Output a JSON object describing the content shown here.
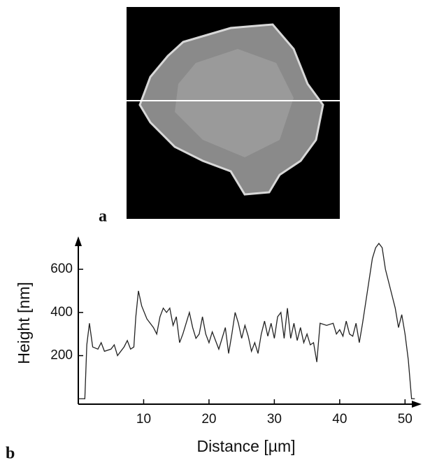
{
  "panel_labels": [
    "a",
    "b"
  ],
  "chart_data": {
    "type": "line",
    "xlabel": "Distance [µm]",
    "ylabel": "Height [nm]",
    "x": [
      0,
      1,
      1.3,
      1.7,
      2.2,
      3,
      3.5,
      4,
      5,
      5.5,
      6,
      7,
      7.5,
      8,
      8.5,
      8.8,
      9.2,
      9.7,
      10.5,
      11.5,
      12,
      12.5,
      13,
      13.5,
      14,
      14.5,
      15,
      15.5,
      16,
      16.5,
      17,
      17.5,
      18,
      18.5,
      19,
      19.5,
      20,
      20.5,
      21,
      21.5,
      22,
      22.5,
      23,
      23.5,
      24,
      24.5,
      25,
      25.5,
      26,
      26.5,
      27,
      27.5,
      28,
      28.5,
      29,
      29.5,
      30,
      30.5,
      31,
      31.5,
      32,
      32.5,
      33,
      33.5,
      34,
      34.5,
      35,
      35.5,
      36,
      36.5,
      37,
      38,
      39,
      39.5,
      40,
      40.5,
      41,
      41.5,
      42,
      42.5,
      43,
      43.5,
      44,
      44.5,
      45,
      45.5,
      46,
      46.5,
      47,
      47.5,
      48,
      48.5,
      49,
      49.5,
      50,
      50.5,
      51,
      51.5
    ],
    "series": [
      {
        "color": "#222222",
        "values": [
          0,
          0,
          250,
          350,
          240,
          230,
          260,
          220,
          230,
          250,
          200,
          240,
          270,
          230,
          240,
          380,
          500,
          430,
          370,
          330,
          300,
          380,
          420,
          400,
          420,
          340,
          380,
          260,
          300,
          350,
          400,
          330,
          280,
          300,
          380,
          300,
          260,
          310,
          270,
          230,
          280,
          330,
          210,
          300,
          400,
          350,
          280,
          340,
          290,
          220,
          260,
          210,
          300,
          360,
          290,
          350,
          280,
          380,
          400,
          280,
          420,
          280,
          350,
          270,
          330,
          260,
          300,
          250,
          260,
          170,
          350,
          340,
          350,
          300,
          320,
          290,
          360,
          300,
          290,
          350,
          260,
          350,
          450,
          550,
          650,
          700,
          720,
          700,
          600,
          540,
          480,
          420,
          330,
          390,
          300,
          180,
          0,
          0
        ]
      }
    ],
    "xlim": [
      0,
      52
    ],
    "ylim": [
      -25,
      730
    ],
    "xticks": [
      10,
      20,
      30,
      40,
      50
    ],
    "yticks": [
      200,
      400,
      600
    ]
  }
}
